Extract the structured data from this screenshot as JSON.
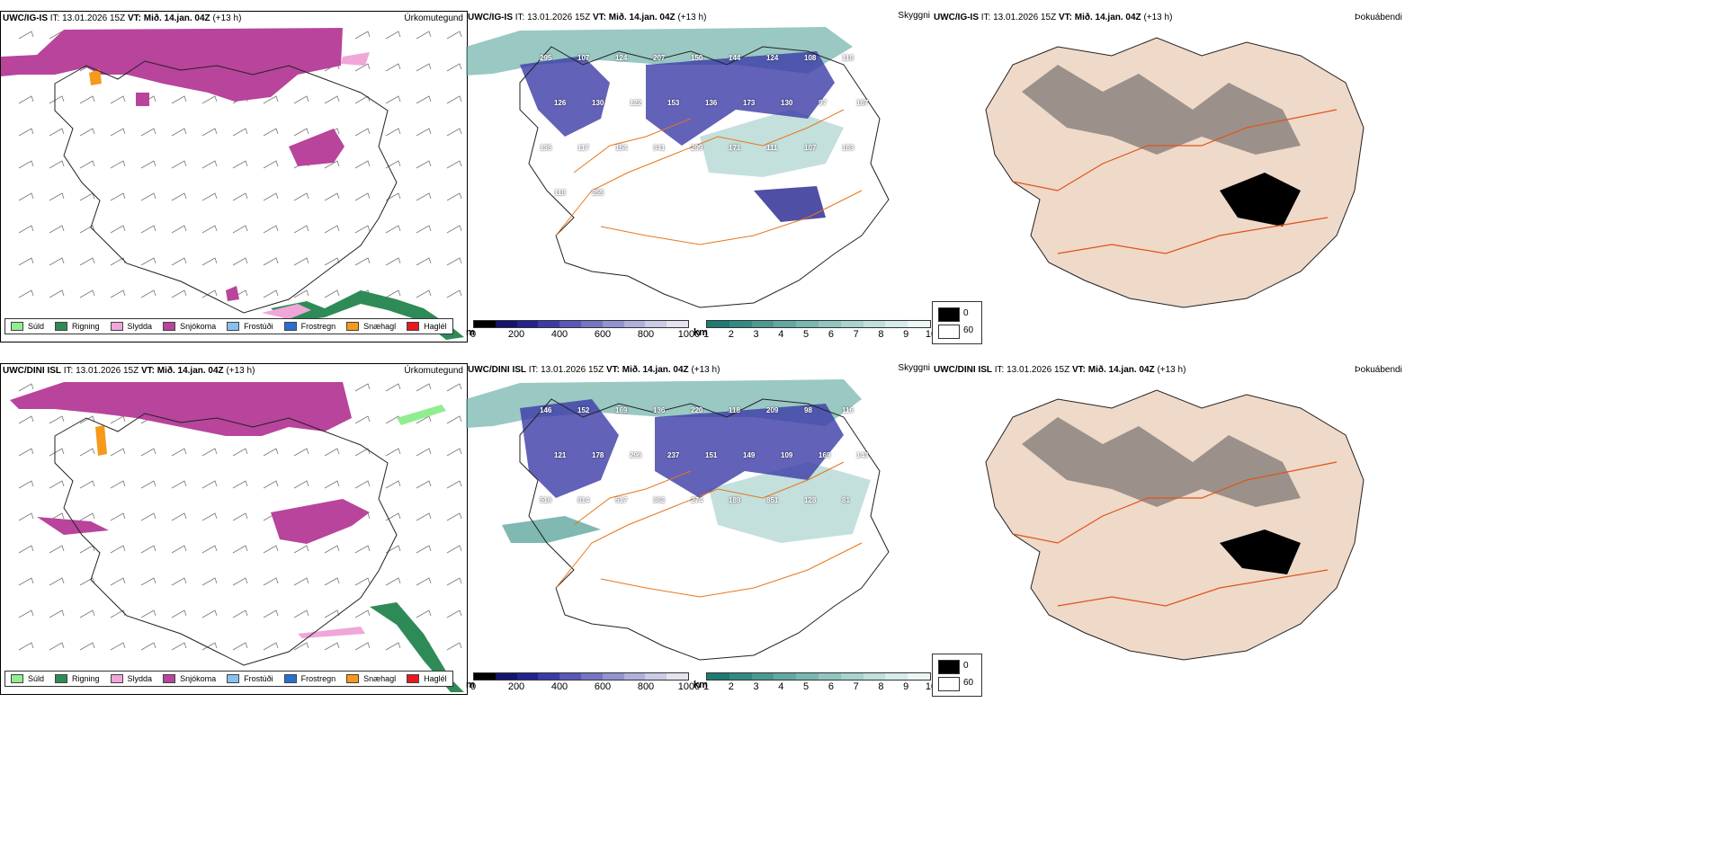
{
  "rows": [
    {
      "model": "UWC/IG-IS",
      "it": "IT: 13.01.2026 15Z",
      "vt_label": "VT:",
      "vt_value": "Mið. 14.jan. 04Z",
      "lead": "(+13 h)"
    },
    {
      "model": "UWC/DINI ISL",
      "it": "IT: 13.01.2026 15Z",
      "vt_label": "VT:",
      "vt_value": "Mið. 14.jan. 04Z",
      "lead": "(+13 h)"
    }
  ],
  "panel_titles": {
    "precip_type": "Úrkomutegund",
    "visibility": "Skyggni",
    "fog": "Þokuábendi"
  },
  "precip_legend": [
    {
      "label": "Súld",
      "color": "#90ee90"
    },
    {
      "label": "Rigning",
      "color": "#2e8b57"
    },
    {
      "label": "Slydda",
      "color": "#f0a6d8"
    },
    {
      "label": "Snjókoma",
      "color": "#b8449c"
    },
    {
      "label": "Frostúði",
      "color": "#87c0f0"
    },
    {
      "label": "Frostregn",
      "color": "#2a6fcf"
    },
    {
      "label": "Snæhagl",
      "color": "#f59a1b"
    },
    {
      "label": "Haglél",
      "color": "#e8181c"
    }
  ],
  "cloud_scale": {
    "unit": "m",
    "ticks": [
      "0",
      "200",
      "400",
      "600",
      "800",
      "1000"
    ],
    "colors": [
      "#000000",
      "#14146e",
      "#23238f",
      "#3b3ba8",
      "#5858b8",
      "#7575c4",
      "#9393d0",
      "#b0b0dc",
      "#cbcbe6",
      "#e4e4f1"
    ]
  },
  "vis_scale": {
    "unit": "km",
    "ticks": [
      "1",
      "2",
      "3",
      "4",
      "5",
      "6",
      "7",
      "8",
      "9",
      "10"
    ],
    "colors": [
      "#1f7a72",
      "#338a82",
      "#4a9a92",
      "#62a9a2",
      "#79b7b1",
      "#91c5c0",
      "#a9d3cf",
      "#c0e0dd",
      "#d6eceb",
      "#ebf6f5"
    ]
  },
  "fog_scale": {
    "values": [
      "0",
      "60"
    ]
  },
  "map_labels": {
    "row0": [
      "295",
      "107",
      "124",
      "207",
      "150",
      "144",
      "124",
      "108",
      "118",
      "126",
      "130",
      "122",
      "153",
      "136",
      "173",
      "130",
      "97",
      "167",
      "135",
      "117",
      "154",
      "341",
      "299",
      "171",
      "111",
      "107",
      "163",
      "118",
      "255"
    ],
    "row1": [
      "146",
      "152",
      "169",
      "136",
      "220",
      "118",
      "209",
      "98",
      "116",
      "121",
      "178",
      "296",
      "237",
      "151",
      "149",
      "109",
      "169",
      "143",
      "516",
      "814",
      "517",
      "362",
      "274",
      "189",
      "851",
      "128",
      "81"
    ]
  }
}
